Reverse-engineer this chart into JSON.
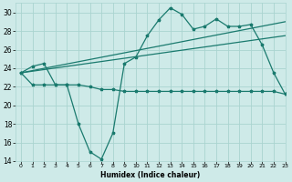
{
  "x": [
    0,
    1,
    2,
    3,
    4,
    5,
    6,
    7,
    8,
    9,
    10,
    11,
    12,
    13,
    14,
    15,
    16,
    17,
    18,
    19,
    20,
    21,
    22,
    23
  ],
  "line_main": [
    23.5,
    24.2,
    24.5,
    22.2,
    22.2,
    18.0,
    15.0,
    14.2,
    17.0,
    24.5,
    25.2,
    27.5,
    29.2,
    30.5,
    29.8,
    28.2,
    28.5,
    29.3,
    28.5,
    28.5,
    28.7,
    26.5,
    23.5,
    21.2
  ],
  "line_flat": [
    23.5,
    22.2,
    22.2,
    22.2,
    22.2,
    22.2,
    22.0,
    21.7,
    21.7,
    21.5,
    21.5,
    21.5,
    21.5,
    21.5,
    21.5,
    21.5,
    21.5,
    21.5,
    21.5,
    21.5,
    21.5,
    21.5,
    21.5,
    21.2
  ],
  "trend1_x": [
    0,
    23
  ],
  "trend1_y": [
    23.5,
    27.5
  ],
  "trend2_x": [
    0,
    23
  ],
  "trend2_y": [
    23.5,
    29.0
  ],
  "color": "#1a7a6e",
  "bg_color": "#ceeae8",
  "grid_color": "#aad4d0",
  "xlabel": "Humidex (Indice chaleur)",
  "ylim": [
    14,
    31
  ],
  "xlim": [
    -0.5,
    23
  ],
  "yticks": [
    14,
    16,
    18,
    20,
    22,
    24,
    26,
    28,
    30
  ],
  "xticks": [
    0,
    1,
    2,
    3,
    4,
    5,
    6,
    7,
    8,
    9,
    10,
    11,
    12,
    13,
    14,
    15,
    16,
    17,
    18,
    19,
    20,
    21,
    22,
    23
  ]
}
